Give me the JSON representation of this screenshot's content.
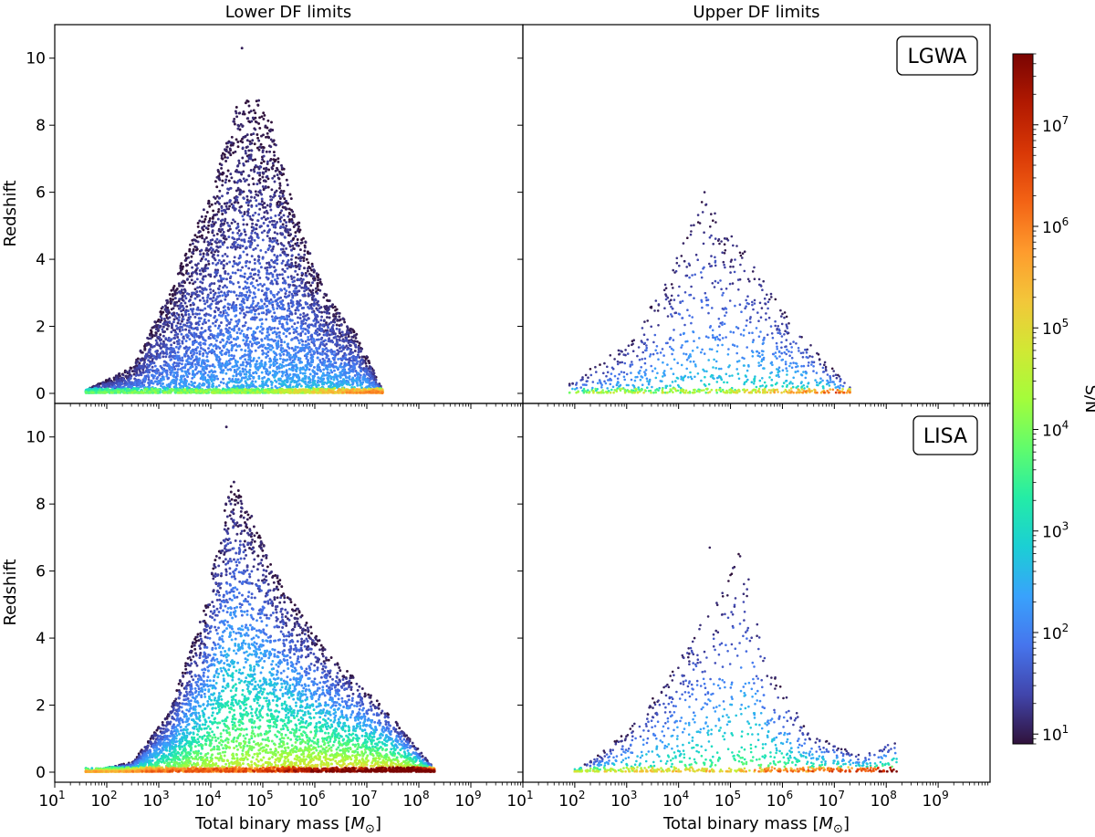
{
  "figure": {
    "column_titles": [
      "Lower DF limits",
      "Upper DF limits"
    ],
    "row_badges": [
      "LGWA",
      "LISA"
    ],
    "colorbar_label": "S/N",
    "colorbar_ticks": [
      {
        "base": "10",
        "exp": "1",
        "value": 10
      },
      {
        "base": "10",
        "exp": "2",
        "value": 100
      },
      {
        "base": "10",
        "exp": "3",
        "value": 1000
      },
      {
        "base": "10",
        "exp": "4",
        "value": 10000
      },
      {
        "base": "10",
        "exp": "5",
        "value": 100000
      },
      {
        "base": "10",
        "exp": "6",
        "value": 1000000
      },
      {
        "base": "10",
        "exp": "7",
        "value": 10000000
      }
    ],
    "colormap_stops": [
      "#30123b",
      "#4145ab",
      "#4675ed",
      "#39a2fc",
      "#1bcfd4",
      "#24eca6",
      "#61fc6c",
      "#a4fc3b",
      "#d1e834",
      "#f3c63a",
      "#fe9b2d",
      "#f36315",
      "#d93806",
      "#b11901",
      "#7a0402"
    ]
  },
  "chart_data": [
    {
      "type": "scatter",
      "panel": "top-left",
      "detector": "LGWA",
      "df_limits": "Lower DF limits",
      "xscale": "log",
      "xlim": [
        10,
        10000000000
      ],
      "ylim": [
        -0.3,
        11
      ],
      "ylabel": "Redshift",
      "xlabel": "Total binary mass [M⊙]",
      "color_scale": "log",
      "color_range": [
        8,
        50000000
      ],
      "num_points": 6000,
      "mass_log10_range": [
        1.6,
        7.3
      ],
      "peak_mass_log10": 4.9,
      "max_redshift": 10.3,
      "snr_log10_typical_range": [
        0.9,
        2.6
      ],
      "envelope": [
        [
          1.6,
          0.1
        ],
        [
          2.5,
          0.8
        ],
        [
          3.2,
          3.0
        ],
        [
          4.0,
          6.0
        ],
        [
          4.5,
          8.6
        ],
        [
          4.9,
          8.9
        ],
        [
          5.2,
          8.0
        ],
        [
          5.6,
          5.5
        ],
        [
          6.2,
          3.0
        ],
        [
          6.8,
          1.8
        ],
        [
          7.3,
          0.1
        ]
      ]
    },
    {
      "type": "scatter",
      "panel": "top-right",
      "detector": "LGWA",
      "df_limits": "Upper DF limits",
      "xscale": "log",
      "xlim": [
        10,
        10000000000
      ],
      "ylim": [
        -0.3,
        11
      ],
      "ylabel": "Redshift",
      "xlabel": "Total binary mass [M⊙]",
      "color_scale": "log",
      "color_range": [
        8,
        50000000
      ],
      "num_points": 1100,
      "mass_log10_range": [
        1.9,
        7.3
      ],
      "peak_mass_log10": 4.8,
      "max_redshift": 6.0,
      "snr_log10_typical_range": [
        1.0,
        3.2
      ],
      "envelope": [
        [
          1.9,
          0.3
        ],
        [
          3.0,
          1.5
        ],
        [
          3.8,
          3.5
        ],
        [
          4.4,
          5.9
        ],
        [
          4.8,
          5.2
        ],
        [
          5.3,
          4.2
        ],
        [
          6.0,
          2.5
        ],
        [
          6.8,
          1.0
        ],
        [
          7.3,
          0.2
        ]
      ]
    },
    {
      "type": "scatter",
      "panel": "bottom-left",
      "detector": "LISA",
      "df_limits": "Lower DF limits",
      "xscale": "log",
      "xlim": [
        10,
        10000000000
      ],
      "ylim": [
        -0.3,
        11
      ],
      "ylabel": "Redshift",
      "xlabel": "Total binary mass [M⊙]",
      "color_scale": "log",
      "color_range": [
        8,
        50000000
      ],
      "num_points": 6000,
      "mass_log10_range": [
        1.6,
        8.3
      ],
      "peak_mass_log10": 4.6,
      "max_redshift": 10.3,
      "snr_log10_typical_range": [
        0.9,
        5.0
      ],
      "envelope": [
        [
          1.6,
          0.0
        ],
        [
          2.5,
          0.3
        ],
        [
          3.2,
          1.8
        ],
        [
          3.9,
          5.0
        ],
        [
          4.4,
          8.9
        ],
        [
          4.8,
          7.6
        ],
        [
          5.4,
          5.5
        ],
        [
          6.3,
          3.5
        ],
        [
          7.3,
          2.0
        ],
        [
          8.3,
          0.1
        ]
      ]
    },
    {
      "type": "scatter",
      "panel": "bottom-right",
      "detector": "LISA",
      "df_limits": "Upper DF limits",
      "xscale": "log",
      "xlim": [
        10,
        10000000000
      ],
      "ylim": [
        -0.3,
        11
      ],
      "ylabel": "Redshift",
      "xlabel": "Total binary mass [M⊙]",
      "color_scale": "log",
      "color_range": [
        8,
        50000000
      ],
      "num_points": 1200,
      "mass_log10_range": [
        2.0,
        8.2
      ],
      "peak_mass_log10": 4.9,
      "max_redshift": 6.7,
      "snr_log10_typical_range": [
        1.0,
        4.0
      ],
      "envelope": [
        [
          2.0,
          0.0
        ],
        [
          3.0,
          1.2
        ],
        [
          3.8,
          2.8
        ],
        [
          4.4,
          4.8
        ],
        [
          4.8,
          5.3
        ],
        [
          5.2,
          6.7
        ],
        [
          5.8,
          3.0
        ],
        [
          6.5,
          1.2
        ],
        [
          7.5,
          0.5
        ],
        [
          8.2,
          1.0
        ]
      ]
    }
  ],
  "axes": {
    "x_ticks": [
      {
        "base": "10",
        "exp": "1",
        "log": 1
      },
      {
        "base": "10",
        "exp": "2",
        "log": 2
      },
      {
        "base": "10",
        "exp": "3",
        "log": 3
      },
      {
        "base": "10",
        "exp": "4",
        "log": 4
      },
      {
        "base": "10",
        "exp": "5",
        "log": 5
      },
      {
        "base": "10",
        "exp": "6",
        "log": 6
      },
      {
        "base": "10",
        "exp": "7",
        "log": 7
      },
      {
        "base": "10",
        "exp": "8",
        "log": 8
      },
      {
        "base": "10",
        "exp": "9",
        "log": 9
      }
    ],
    "y_ticks": [
      "0",
      "2",
      "4",
      "6",
      "8",
      "10"
    ],
    "xlabel_text": "Total binary mass [",
    "xlabel_symbol": "M",
    "xlabel_sub": "⊙",
    "xlabel_end": "]",
    "ylabel": "Redshift"
  }
}
